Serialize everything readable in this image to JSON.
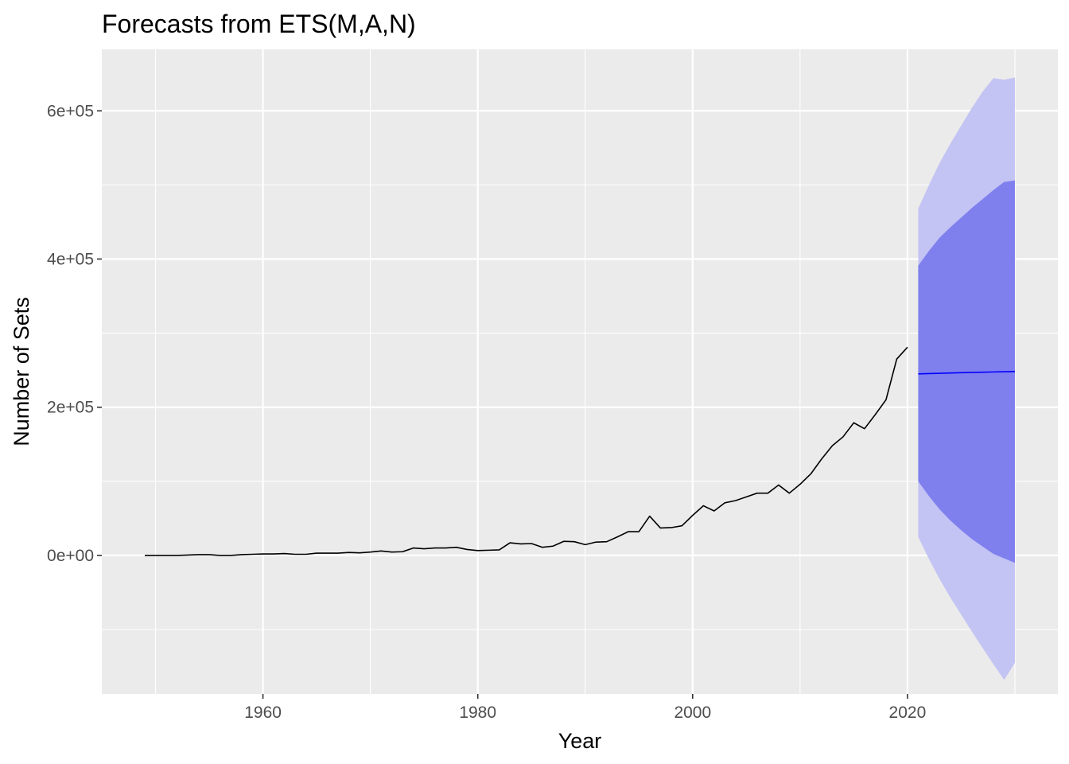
{
  "chart_data": {
    "type": "line",
    "title": "Forecasts from ETS(M,A,N)",
    "xlabel": "Year",
    "ylabel": "Number of Sets",
    "xlim": [
      1945,
      2034
    ],
    "ylim": [
      -187000,
      683000
    ],
    "grid": true,
    "legend": "none",
    "x_ticks": [
      {
        "value": 1960,
        "label": "1960"
      },
      {
        "value": 1980,
        "label": "1980"
      },
      {
        "value": 2000,
        "label": "2000"
      },
      {
        "value": 2020,
        "label": "2020"
      }
    ],
    "x_minor_ticks": [
      1950,
      1970,
      1990,
      2010,
      2030
    ],
    "y_ticks": [
      {
        "value": 0,
        "label": "0e+00"
      },
      {
        "value": 200000,
        "label": "2e+05"
      },
      {
        "value": 400000,
        "label": "4e+05"
      },
      {
        "value": 600000,
        "label": "6e+05"
      }
    ],
    "y_minor_ticks": [
      -100000,
      100000,
      300000,
      500000
    ],
    "colors": {
      "panel": "#ebebeb",
      "grid": "#ffffff",
      "history_line": "#000000",
      "forecast_line": "#0000ff",
      "band80": "#7f7fee",
      "band95": "#c3c3f4"
    },
    "history": {
      "x": [
        1949,
        1950,
        1951,
        1952,
        1953,
        1954,
        1955,
        1956,
        1957,
        1958,
        1959,
        1960,
        1961,
        1962,
        1963,
        1964,
        1965,
        1966,
        1967,
        1968,
        1969,
        1970,
        1971,
        1972,
        1973,
        1974,
        1975,
        1976,
        1977,
        1978,
        1979,
        1980,
        1981,
        1982,
        1983,
        1984,
        1985,
        1986,
        1987,
        1988,
        1989,
        1990,
        1991,
        1992,
        1993,
        1994,
        1995,
        1996,
        1997,
        1998,
        1999,
        2000,
        2001,
        2002,
        2003,
        2004,
        2005,
        2006,
        2007,
        2008,
        2009,
        2010,
        2011,
        2012,
        2013,
        2014,
        2015,
        2016,
        2017,
        2018,
        2019,
        2020
      ],
      "y": [
        0,
        0,
        0,
        0,
        500,
        1000,
        1000,
        0,
        0,
        1000,
        1500,
        2000,
        2000,
        2500,
        1500,
        1500,
        3000,
        3000,
        3000,
        4000,
        3500,
        4500,
        6000,
        4500,
        5000,
        10000,
        9000,
        10000,
        10000,
        11000,
        8000,
        6500,
        7000,
        7500,
        17000,
        15500,
        16000,
        11000,
        12500,
        19000,
        18500,
        14500,
        18000,
        18500,
        25000,
        32000,
        32000,
        53000,
        37000,
        37500,
        40000,
        54000,
        67000,
        60000,
        71000,
        74000,
        79000,
        84000,
        84000,
        95000,
        84000,
        96000,
        110000,
        130000,
        148000,
        160000,
        179000,
        171000,
        190000,
        210000,
        265000,
        281000
      ]
    },
    "forecast": {
      "x": [
        2021,
        2022,
        2023,
        2024,
        2025,
        2026,
        2027,
        2028,
        2029,
        2030
      ],
      "mean": [
        245000,
        245400,
        245800,
        246200,
        246600,
        247000,
        247300,
        247600,
        247900,
        248200
      ],
      "lo80": [
        100000,
        80000,
        62000,
        47000,
        34000,
        22000,
        12000,
        2000,
        -4000,
        -10000
      ],
      "hi80": [
        391000,
        411000,
        429000,
        443000,
        456000,
        469000,
        481000,
        493000,
        504000,
        506000
      ],
      "lo95": [
        25000,
        -5000,
        -32000,
        -57000,
        -80000,
        -103000,
        -125000,
        -147000,
        -168000,
        -145000
      ],
      "hi95": [
        468000,
        500000,
        530000,
        556000,
        580000,
        604000,
        626000,
        644000,
        642000,
        645000
      ]
    }
  }
}
